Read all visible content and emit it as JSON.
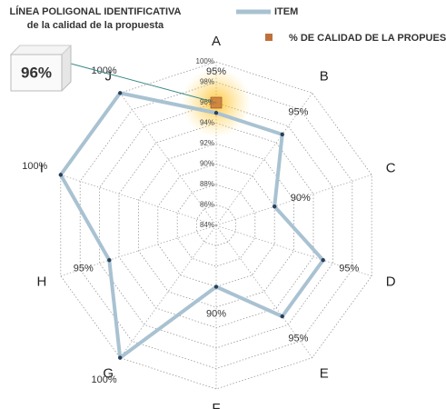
{
  "chart_data": {
    "type": "radar",
    "title": "LÍNEA POLIGONAL IDENTIFICATIVA",
    "subtitle": "de la calidad de la propuesta",
    "categories": [
      "A",
      "B",
      "C",
      "D",
      "E",
      "F",
      "G",
      "H",
      "I",
      "J"
    ],
    "series": [
      {
        "name": "ITEM",
        "color": "#a9c2d2",
        "values": [
          95,
          95,
          90,
          95,
          95,
          90,
          100,
          95,
          100,
          100
        ],
        "value_labels": [
          "95%",
          "95%",
          "90%",
          "95%",
          "95%",
          "90%",
          "100%",
          "95%",
          "100%",
          "100%"
        ]
      }
    ],
    "quality": {
      "name": "% DE CALIDAD DE LA PROPUEST",
      "category": "A",
      "value": 96,
      "value_label": "96%",
      "color": "#c0703a"
    },
    "rlim": [
      84,
      100
    ],
    "rticks": [
      {
        "value": 84,
        "label": "84%"
      },
      {
        "value": 86,
        "label": "86%"
      },
      {
        "value": 88,
        "label": "88%"
      },
      {
        "value": 90,
        "label": "90%"
      },
      {
        "value": 92,
        "label": "92%"
      },
      {
        "value": 94,
        "label": "94%"
      },
      {
        "value": 96,
        "label": "96%"
      },
      {
        "value": 98,
        "label": "98%"
      },
      {
        "value": 100,
        "label": "100%"
      }
    ],
    "grid": true
  }
}
